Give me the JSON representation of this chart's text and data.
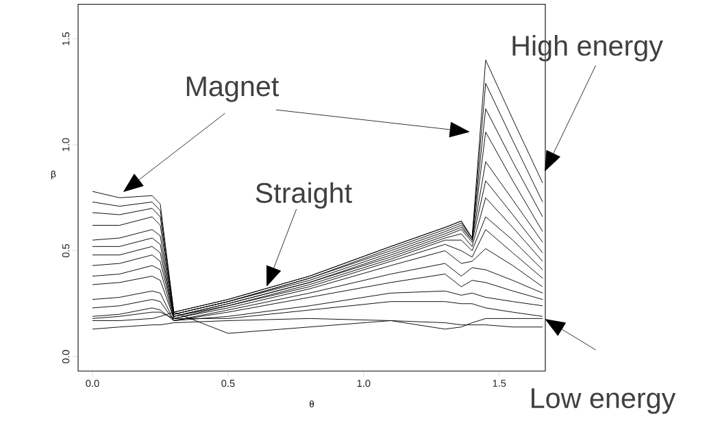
{
  "chart_data": {
    "type": "line",
    "xlabel": "θ",
    "ylabel": "β",
    "annotations": [
      "Magnet",
      "Straight",
      "High energy",
      "Low energy"
    ],
    "x": [
      0,
      0.1,
      0.22,
      0.25,
      0.3,
      0.5,
      0.8,
      1.1,
      1.3,
      1.36,
      1.4,
      1.45,
      1.55,
      1.66
    ],
    "xlim": [
      -0.053,
      1.67
    ],
    "ylim": [
      -0.068,
      1.663
    ],
    "xticks": [
      {
        "value": 0,
        "label": "0.0"
      },
      {
        "value": 0.5,
        "label": "0.5"
      },
      {
        "value": 1,
        "label": "1.0"
      },
      {
        "value": 1.5,
        "label": "1.5"
      }
    ],
    "yticks": [
      {
        "value": 0,
        "label": "0.0"
      },
      {
        "value": 0.5,
        "label": "0.5"
      },
      {
        "value": 1,
        "label": "1.0"
      },
      {
        "value": 1.5,
        "label": "1.5"
      }
    ],
    "marker": "none",
    "line_style": "solid",
    "series": [
      {
        "color": "#000000",
        "values": [
          0.78,
          0.75,
          0.76,
          0.72,
          0.21,
          0.27,
          0.38,
          0.52,
          0.61,
          0.64,
          0.56,
          1.4,
          1.12,
          0.82
        ]
      },
      {
        "color": "#000000",
        "values": [
          0.73,
          0.71,
          0.73,
          0.69,
          0.21,
          0.27,
          0.38,
          0.52,
          0.61,
          0.64,
          0.56,
          1.29,
          1.02,
          0.73
        ]
      },
      {
        "color": "#000000",
        "values": [
          0.68,
          0.67,
          0.7,
          0.66,
          0.2,
          0.26,
          0.37,
          0.51,
          0.6,
          0.63,
          0.56,
          1.17,
          0.92,
          0.66
        ]
      },
      {
        "color": "#000000",
        "values": [
          0.62,
          0.62,
          0.66,
          0.62,
          0.2,
          0.26,
          0.37,
          0.5,
          0.59,
          0.62,
          0.55,
          1.06,
          0.83,
          0.59
        ]
      },
      {
        "color": "#000000",
        "values": [
          0.55,
          0.56,
          0.6,
          0.57,
          0.2,
          0.26,
          0.36,
          0.49,
          0.58,
          0.61,
          0.55,
          0.92,
          0.74,
          0.54
        ]
      },
      {
        "color": "#000000",
        "values": [
          0.52,
          0.52,
          0.56,
          0.53,
          0.19,
          0.25,
          0.35,
          0.48,
          0.57,
          0.6,
          0.54,
          0.83,
          0.67,
          0.49
        ]
      },
      {
        "color": "#000000",
        "values": [
          0.48,
          0.48,
          0.52,
          0.49,
          0.19,
          0.25,
          0.35,
          0.47,
          0.56,
          0.58,
          0.52,
          0.75,
          0.61,
          0.45
        ]
      },
      {
        "color": "#000000",
        "values": [
          0.43,
          0.44,
          0.48,
          0.45,
          0.19,
          0.24,
          0.34,
          0.46,
          0.55,
          0.55,
          0.5,
          0.66,
          0.55,
          0.41
        ]
      },
      {
        "color": "#000000",
        "values": [
          0.38,
          0.39,
          0.43,
          0.41,
          0.18,
          0.24,
          0.33,
          0.45,
          0.53,
          0.5,
          0.47,
          0.6,
          0.49,
          0.37
        ]
      },
      {
        "color": "#000000",
        "values": [
          0.34,
          0.35,
          0.38,
          0.36,
          0.18,
          0.23,
          0.32,
          0.43,
          0.5,
          0.44,
          0.45,
          0.51,
          0.43,
          0.33
        ]
      },
      {
        "color": "#000000",
        "values": [
          0.27,
          0.28,
          0.31,
          0.3,
          0.17,
          0.22,
          0.3,
          0.39,
          0.44,
          0.38,
          0.42,
          0.41,
          0.36,
          0.3
        ]
      },
      {
        "color": "#000000",
        "values": [
          0.23,
          0.24,
          0.27,
          0.26,
          0.17,
          0.21,
          0.28,
          0.35,
          0.39,
          0.33,
          0.36,
          0.35,
          0.31,
          0.27
        ]
      },
      {
        "color": "#000000",
        "values": [
          0.19,
          0.2,
          0.23,
          0.22,
          0.17,
          0.19,
          0.24,
          0.3,
          0.31,
          0.29,
          0.3,
          0.28,
          0.26,
          0.24
        ]
      },
      {
        "color": "#000000",
        "values": [
          0.18,
          0.19,
          0.21,
          0.21,
          0.18,
          0.18,
          0.22,
          0.26,
          0.26,
          0.25,
          0.25,
          0.23,
          0.21,
          0.19
        ]
      },
      {
        "color": "#000000",
        "values": [
          0.17,
          0.17,
          0.18,
          0.19,
          0.21,
          0.11,
          0.14,
          0.17,
          0.13,
          0.14,
          0.16,
          0.18,
          0.18,
          0.18
        ]
      },
      {
        "color": "#000000",
        "values": [
          0.13,
          0.14,
          0.15,
          0.15,
          0.16,
          0.17,
          0.18,
          0.17,
          0.16,
          0.15,
          0.15,
          0.15,
          0.14,
          0.14
        ]
      }
    ]
  }
}
